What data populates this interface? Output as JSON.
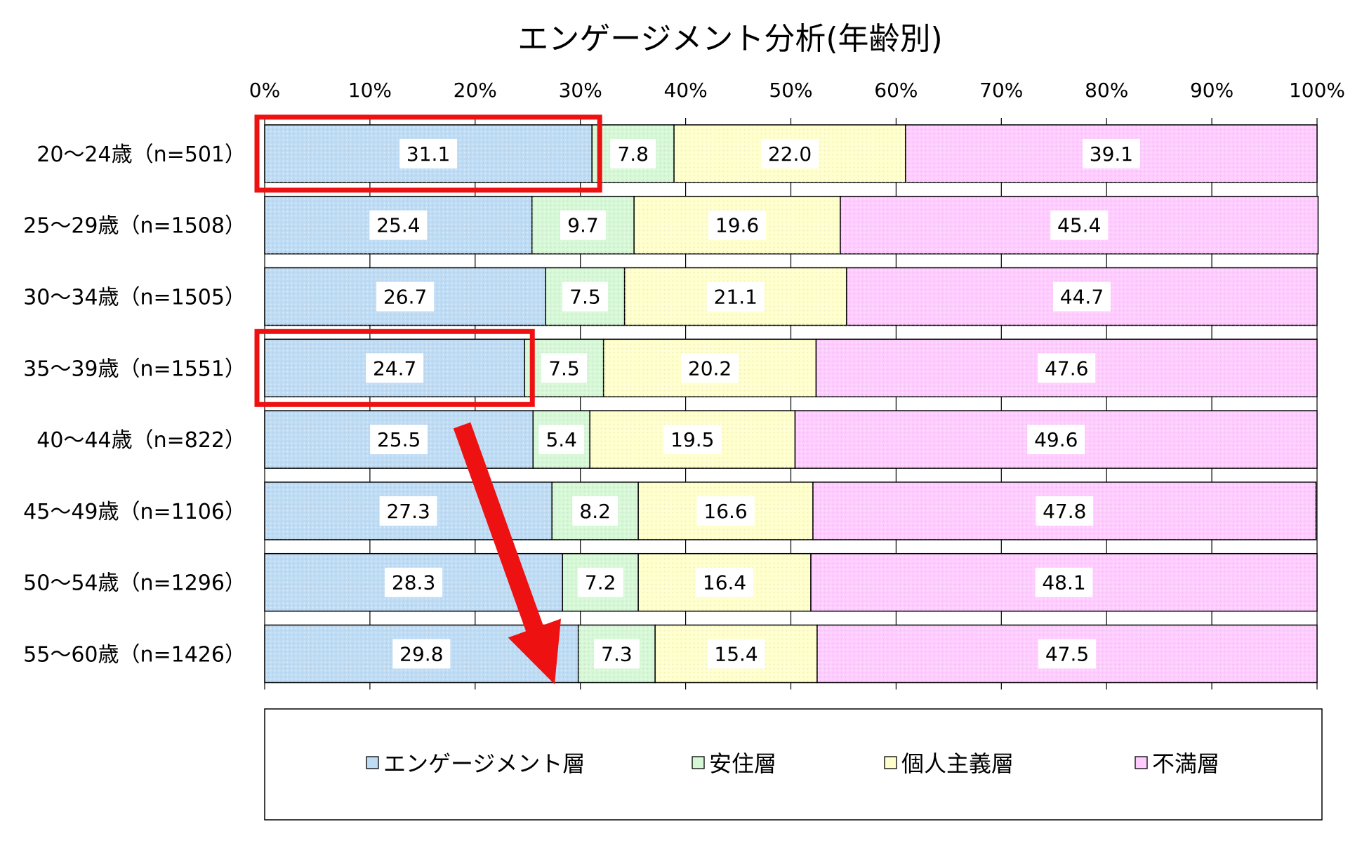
{
  "chart_data": {
    "type": "bar",
    "orientation": "horizontal",
    "stacked": "percent",
    "title": "エンゲージメント分析(年齢別)",
    "categories": [
      "20～24歳（n=501）",
      "25～29歳（n=1508）",
      "30～34歳（n=1505）",
      "35～39歳（n=1551）",
      "40～44歳（n=822）",
      "45～49歳（n=1106）",
      "50～54歳（n=1296）",
      "55～60歳（n=1426）"
    ],
    "series": [
      {
        "name": "エンゲージメント層",
        "color": "#bfdcf5",
        "values": [
          31.1,
          25.4,
          26.7,
          24.7,
          25.5,
          27.3,
          28.3,
          29.8
        ]
      },
      {
        "name": "安住層",
        "color": "#d6f8d6",
        "values": [
          7.8,
          9.7,
          7.5,
          7.5,
          5.4,
          8.2,
          7.2,
          7.3
        ]
      },
      {
        "name": "個人主義層",
        "color": "#ffffcc",
        "values": [
          22.0,
          19.6,
          21.1,
          20.2,
          19.5,
          16.6,
          16.4,
          15.4
        ]
      },
      {
        "name": "不満層",
        "color": "#ffccff",
        "values": [
          39.1,
          45.4,
          44.7,
          47.6,
          49.6,
          47.8,
          48.1,
          47.5
        ]
      }
    ],
    "xlim": [
      0,
      100
    ],
    "x_ticks": [
      "0%",
      "10%",
      "20%",
      "30%",
      "40%",
      "50%",
      "60%",
      "70%",
      "80%",
      "90%",
      "100%"
    ],
    "grid": true,
    "legend": "bottom",
    "annotations": {
      "highlight_rows": [
        "20～24歳（n=501）",
        "35～39歳（n=1551）"
      ],
      "highlight_color": "#ee1111",
      "arrow": "down-right",
      "arrow_color": "#ee1111"
    }
  }
}
